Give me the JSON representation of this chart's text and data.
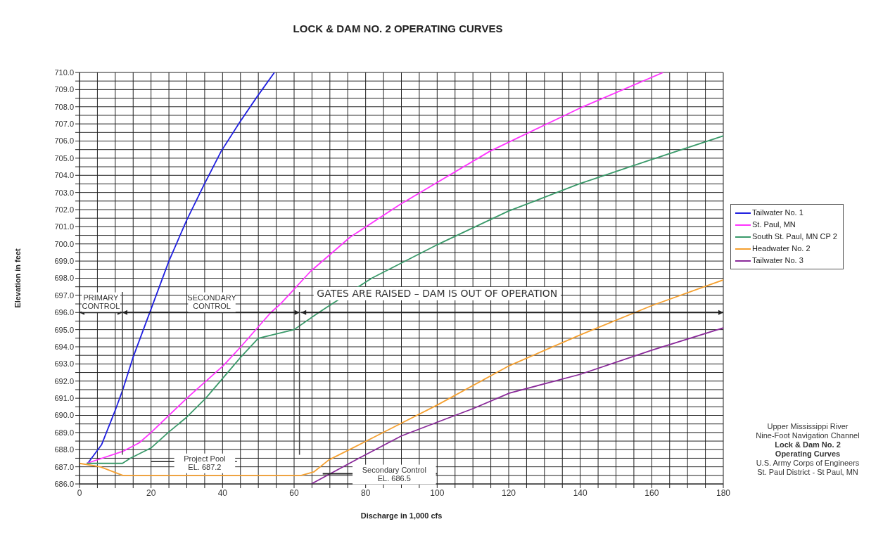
{
  "chart_data": {
    "type": "line",
    "title": "LOCK & DAM NO. 2 OPERATING CURVES",
    "xlabel": "Discharge in 1,000 cfs",
    "ylabel": "Elevation in feet",
    "xlim": [
      0,
      180
    ],
    "xticks": [
      0,
      {
        "value": 5,
        "label": null
      },
      {
        "value": 10,
        "label": null
      },
      {
        "value": 15,
        "label": null
      },
      20,
      {
        "value": 25,
        "label": null
      },
      {
        "value": 30,
        "label": null
      },
      {
        "value": 35,
        "label": null
      },
      40,
      {
        "value": 45,
        "label": null
      },
      {
        "value": 50,
        "label": null
      },
      {
        "value": 55,
        "label": null
      },
      60,
      {
        "value": 65,
        "label": null
      },
      {
        "value": 70,
        "label": null
      },
      {
        "value": 75,
        "label": null
      },
      80,
      {
        "value": 85,
        "label": null
      },
      {
        "value": 90,
        "label": null
      },
      {
        "value": 95,
        "label": null
      },
      100,
      {
        "value": 105,
        "label": null
      },
      {
        "value": 110,
        "label": null
      },
      {
        "value": 115,
        "label": null
      },
      120,
      {
        "value": 125,
        "label": null
      },
      {
        "value": 130,
        "label": null
      },
      {
        "value": 135,
        "label": null
      },
      140,
      {
        "value": 145,
        "label": null
      },
      {
        "value": 150,
        "label": null
      },
      {
        "value": 155,
        "label": null
      },
      160,
      {
        "value": 165,
        "label": null
      },
      {
        "value": 170,
        "label": null
      },
      {
        "value": 175,
        "label": null
      },
      180
    ],
    "ylim": [
      686,
      710
    ],
    "yticks": [
      {
        "value": 686,
        "label": "686.0"
      },
      {
        "value": 686.5,
        "label": null
      },
      {
        "value": 687,
        "label": "687.0"
      },
      {
        "value": 687.5,
        "label": null
      },
      {
        "value": 688,
        "label": "688.0"
      },
      {
        "value": 688.5,
        "label": null
      },
      {
        "value": 689,
        "label": "689.0"
      },
      {
        "value": 689.5,
        "label": null
      },
      {
        "value": 690,
        "label": "690.0"
      },
      {
        "value": 690.5,
        "label": null
      },
      {
        "value": 691,
        "label": "691.0"
      },
      {
        "value": 691.5,
        "label": null
      },
      {
        "value": 692,
        "label": "692.0"
      },
      {
        "value": 692.5,
        "label": null
      },
      {
        "value": 693,
        "label": "693.0"
      },
      {
        "value": 693.5,
        "label": null
      },
      {
        "value": 694,
        "label": "694.0"
      },
      {
        "value": 694.5,
        "label": null
      },
      {
        "value": 695,
        "label": "695.0"
      },
      {
        "value": 695.5,
        "label": null
      },
      {
        "value": 696,
        "label": "696.0"
      },
      {
        "value": 696.5,
        "label": null
      },
      {
        "value": 697,
        "label": "697.0"
      },
      {
        "value": 697.5,
        "label": null
      },
      {
        "value": 698,
        "label": "698.0"
      },
      {
        "value": 698.5,
        "label": null
      },
      {
        "value": 699,
        "label": "699.0"
      },
      {
        "value": 699.5,
        "label": null
      },
      {
        "value": 700,
        "label": "700.0"
      },
      {
        "value": 700.5,
        "label": null
      },
      {
        "value": 701,
        "label": "701.0"
      },
      {
        "value": 701.5,
        "label": null
      },
      {
        "value": 702,
        "label": "702.0"
      },
      {
        "value": 702.5,
        "label": null
      },
      {
        "value": 703,
        "label": "703.0"
      },
      {
        "value": 703.5,
        "label": null
      },
      {
        "value": 704,
        "label": "704.0"
      },
      {
        "value": 704.5,
        "label": null
      },
      {
        "value": 705,
        "label": "705.0"
      },
      {
        "value": 705.5,
        "label": null
      },
      {
        "value": 706,
        "label": "706.0"
      },
      {
        "value": 706.5,
        "label": null
      },
      {
        "value": 707,
        "label": "707.0"
      },
      {
        "value": 707.5,
        "label": null
      },
      {
        "value": 708,
        "label": "708.0"
      },
      {
        "value": 708.5,
        "label": null
      },
      {
        "value": 709,
        "label": "709.0"
      },
      {
        "value": 709.5,
        "label": null
      },
      {
        "value": 710,
        "label": "710.0"
      }
    ],
    "ref_lines": [
      {
        "axis": "x",
        "value": 12,
        "color": "#444444"
      },
      {
        "axis": "x",
        "value": 61.5,
        "color": "#444444"
      }
    ],
    "grid": true,
    "legend": "right",
    "marker": "none",
    "line_style": "solid",
    "series": [
      {
        "name": "Tailwater No. 1",
        "color": "#2020e0",
        "x": [
          2.3,
          6.2,
          10,
          12.1,
          15,
          20,
          25,
          30,
          34.7,
          39.6,
          44.8,
          49.7,
          54.5
        ],
        "values": [
          687.2,
          688.3,
          690.3,
          691.5,
          693.4,
          696.2,
          699.0,
          701.4,
          703.4,
          705.4,
          707.1,
          708.6,
          710.0
        ]
      },
      {
        "name": "St. Paul, MN",
        "color": "#ff33ff",
        "x": [
          2,
          12.1,
          16.7,
          20,
          30,
          40.2,
          45.1,
          53.5,
          56.2,
          64.6,
          75.7,
          89.6,
          114.7,
          139.7,
          163.2
        ],
        "values": [
          687.2,
          687.9,
          688.4,
          689.0,
          691.0,
          692.9,
          694.0,
          696.0,
          696.5,
          698.4,
          700.4,
          702.3,
          705.4,
          707.9,
          710.0
        ]
      },
      {
        "name": "South St. Paul, MN CP 2",
        "color": "#3a9a6a",
        "x": [
          2,
          12,
          14.2,
          20,
          24.8,
          30,
          35.3,
          40.2,
          45.1,
          50,
          60,
          66.9,
          81.7,
          99.5,
          119.8,
          139.7,
          159.6,
          180
        ],
        "values": [
          687.2,
          687.2,
          687.5,
          688.1,
          689.0,
          689.9,
          691.0,
          692.2,
          693.4,
          694.5,
          695.0,
          696.0,
          698.0,
          699.9,
          701.9,
          703.5,
          704.9,
          706.3
        ]
      },
      {
        "name": "Headwater No. 2",
        "color": "#f5a030",
        "x": [
          0,
          5.8,
          12.1,
          62,
          65.5,
          69.7,
          80.2,
          91.5,
          100,
          120.2,
          140.1,
          160,
          180
        ],
        "values": [
          687.2,
          687.0,
          686.5,
          686.5,
          686.7,
          687.4,
          688.5,
          689.7,
          690.6,
          692.9,
          694.7,
          696.4,
          697.9
        ]
      },
      {
        "name": "Tailwater No. 3",
        "color": "#8a2a9a",
        "x": [
          64.8,
          78.1,
          90,
          100,
          110.1,
          120.2,
          140.1,
          160,
          180
        ],
        "values": [
          686.0,
          687.5,
          688.8,
          689.6,
          690.4,
          691.3,
          692.4,
          693.8,
          695.1
        ]
      }
    ],
    "annotations": [
      "PRIMARY\nCONTROL",
      "SECONDARY\nCONTROL",
      "GATES ARE RAISED – DAM IS OUT OF OPERATION",
      "Project Pool\nEL. 687.2",
      "Secondary Control\nEL. 686.5",
      "Upper Mississippi River",
      "Nine-Foot Navigation Channel",
      "Lock & Dam No. 2",
      "Operating Curves",
      "U.S. Army Corps of Engineers",
      "St. Paul District - St Paul, MN"
    ]
  }
}
